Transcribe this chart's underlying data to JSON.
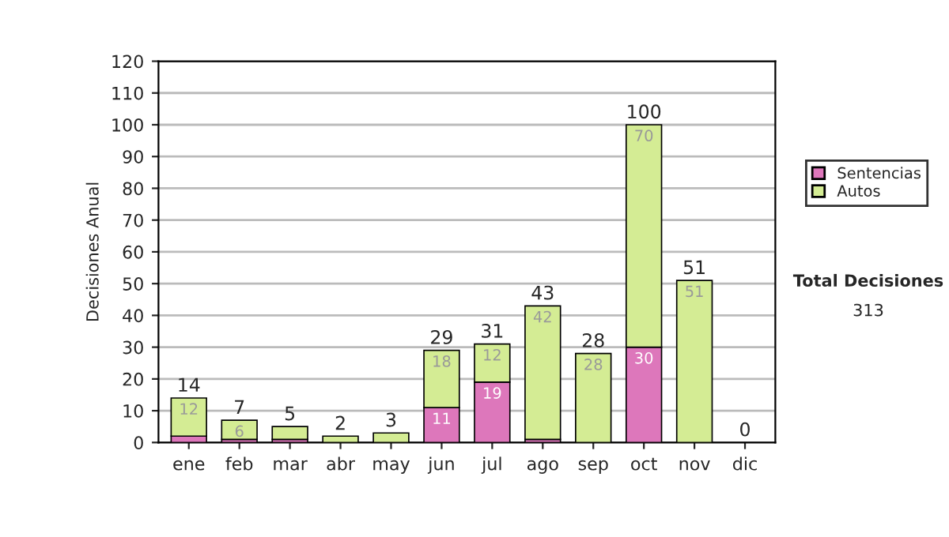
{
  "chart_data": {
    "type": "bar",
    "stacked": true,
    "ylabel": "Decisiones Anual",
    "categories": [
      "ene",
      "feb",
      "mar",
      "abr",
      "may",
      "jun",
      "jul",
      "ago",
      "sep",
      "oct",
      "nov",
      "dic"
    ],
    "series": [
      {
        "name": "Sentencias",
        "color": "#dd77bb",
        "values": [
          2,
          1,
          1,
          0,
          0,
          11,
          19,
          1,
          0,
          30,
          0,
          0
        ],
        "value_labels": [
          null,
          null,
          null,
          null,
          null,
          "11",
          "19",
          null,
          null,
          "30",
          null,
          null
        ]
      },
      {
        "name": "Autos",
        "color": "#d4ec94",
        "values": [
          12,
          6,
          4,
          2,
          3,
          18,
          12,
          42,
          28,
          70,
          51,
          0
        ],
        "value_labels": [
          "12",
          "6",
          null,
          null,
          null,
          "18",
          "12",
          "42",
          "28",
          "70",
          "51",
          null
        ]
      }
    ],
    "totals": [
      "14",
      "7",
      "5",
      "2",
      "3",
      "29",
      "31",
      "43",
      "28",
      "100",
      "51",
      "0"
    ],
    "ylim": [
      0,
      120
    ],
    "yticks": [
      0,
      10,
      20,
      30,
      40,
      50,
      60,
      70,
      80,
      90,
      100,
      110,
      120
    ],
    "grid": "y",
    "legend": "right",
    "annotations": [
      "Total Decisiones",
      "313"
    ]
  }
}
